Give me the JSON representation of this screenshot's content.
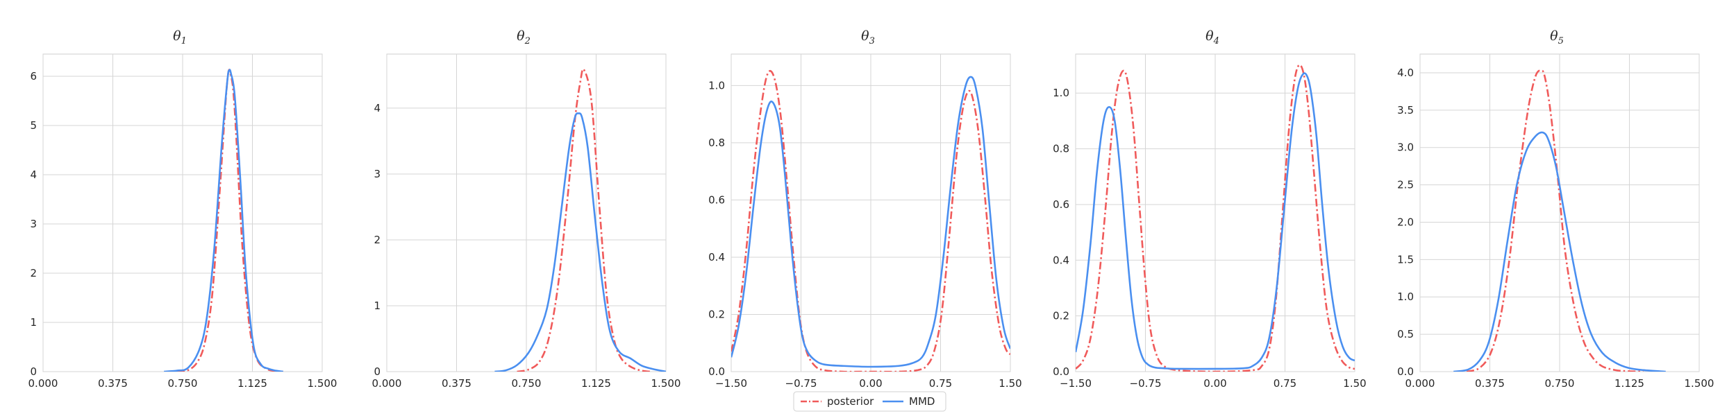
{
  "colors": {
    "posterior": "#f05a5a",
    "mmd": "#4a8ff0",
    "grid": "#d5d5d5",
    "frame": "#cfcfcf"
  },
  "legend": {
    "placement": "bottom-center",
    "entries": [
      {
        "name": "posterior",
        "style": "dash-dot",
        "color": "#f05a5a"
      },
      {
        "name": "MMD",
        "style": "solid",
        "color": "#4a8ff0"
      }
    ]
  },
  "chart_data": [
    {
      "type": "line",
      "title": "θ",
      "title_sub": "1",
      "xlim": [
        0.0,
        1.5
      ],
      "ylim": [
        0,
        6.45
      ],
      "xticks": [
        "0.000",
        "0.375",
        "0.750",
        "1.125",
        "1.500"
      ],
      "xtick_values": [
        0.0,
        0.375,
        0.75,
        1.125,
        1.5
      ],
      "yticks": [
        "0",
        "1",
        "2",
        "3",
        "4",
        "5",
        "6"
      ],
      "ytick_values": [
        0,
        1,
        2,
        3,
        4,
        5,
        6
      ],
      "grid": true,
      "series": [
        {
          "name": "posterior",
          "x": [
            0.72,
            0.78,
            0.83,
            0.87,
            0.91,
            0.95,
            0.99,
            1.01,
            1.03,
            1.07,
            1.11,
            1.15,
            1.2,
            1.25,
            1.29
          ],
          "y": [
            0,
            0.03,
            0.2,
            0.6,
            1.6,
            3.7,
            5.9,
            6.0,
            5.3,
            2.6,
            0.9,
            0.25,
            0.06,
            0.01,
            0
          ]
        },
        {
          "name": "MMD",
          "x": [
            0.65,
            0.72,
            0.78,
            0.84,
            0.88,
            0.92,
            0.96,
            0.99,
            1.0,
            1.01,
            1.03,
            1.06,
            1.09,
            1.13,
            1.17,
            1.21,
            1.25,
            1.29
          ],
          "y": [
            0,
            0.02,
            0.08,
            0.45,
            1.1,
            2.5,
            4.6,
            5.9,
            6.12,
            6.05,
            5.6,
            3.9,
            2.0,
            0.55,
            0.15,
            0.06,
            0.02,
            0
          ]
        }
      ]
    },
    {
      "type": "line",
      "title": "θ",
      "title_sub": "2",
      "xlim": [
        0.0,
        1.5
      ],
      "ylim": [
        0,
        4.82
      ],
      "xticks": [
        "0.000",
        "0.375",
        "0.750",
        "1.125",
        "1.500"
      ],
      "xtick_values": [
        0.0,
        0.375,
        0.75,
        1.125,
        1.5
      ],
      "yticks": [
        "0",
        "1",
        "2",
        "3",
        "4"
      ],
      "ytick_values": [
        0,
        1,
        2,
        3,
        4
      ],
      "grid": true,
      "series": [
        {
          "name": "posterior",
          "x": [
            0.7,
            0.76,
            0.82,
            0.87,
            0.92,
            0.97,
            1.01,
            1.04,
            1.06,
            1.1,
            1.14,
            1.18,
            1.22,
            1.26,
            1.32,
            1.38,
            1.42
          ],
          "y": [
            0,
            0.03,
            0.15,
            0.5,
            1.3,
            2.6,
            3.8,
            4.4,
            4.58,
            4.1,
            2.6,
            1.2,
            0.5,
            0.2,
            0.06,
            0.01,
            0
          ]
        },
        {
          "name": "MMD",
          "x": [
            0.58,
            0.64,
            0.7,
            0.76,
            0.81,
            0.86,
            0.9,
            0.94,
            0.98,
            1.01,
            1.03,
            1.05,
            1.08,
            1.12,
            1.16,
            1.2,
            1.25,
            1.31,
            1.37,
            1.43,
            1.5
          ],
          "y": [
            0,
            0.02,
            0.1,
            0.28,
            0.55,
            0.95,
            1.6,
            2.5,
            3.4,
            3.85,
            3.92,
            3.85,
            3.4,
            2.3,
            1.3,
            0.6,
            0.3,
            0.2,
            0.09,
            0.04,
            0
          ]
        }
      ]
    },
    {
      "type": "line",
      "title": "θ",
      "title_sub": "3",
      "xlim": [
        -1.5,
        1.5
      ],
      "ylim": [
        0,
        1.11
      ],
      "xticks": [
        "−1.50",
        "−0.75",
        "0.00",
        "0.75",
        "1.50"
      ],
      "xtick_values": [
        -1.5,
        -0.75,
        0.0,
        0.75,
        1.5
      ],
      "yticks": [
        "0.0",
        "0.2",
        "0.4",
        "0.6",
        "0.8",
        "1.0"
      ],
      "ytick_values": [
        0.0,
        0.2,
        0.4,
        0.6,
        0.8,
        1.0
      ],
      "grid": true,
      "series": [
        {
          "name": "posterior",
          "x": [
            -1.5,
            -1.42,
            -1.34,
            -1.26,
            -1.18,
            -1.11,
            -1.04,
            -0.97,
            -0.9,
            -0.83,
            -0.76,
            -0.69,
            -0.6,
            -0.5,
            -0.3,
            0.0,
            0.3,
            0.5,
            0.6,
            0.68,
            0.76,
            0.84,
            0.92,
            0.99,
            1.05,
            1.1,
            1.16,
            1.23,
            1.3,
            1.38,
            1.45,
            1.5
          ],
          "y": [
            0.07,
            0.2,
            0.42,
            0.7,
            0.92,
            1.04,
            1.03,
            0.9,
            0.66,
            0.4,
            0.18,
            0.07,
            0.02,
            0.005,
            0,
            0,
            0,
            0.005,
            0.02,
            0.07,
            0.2,
            0.46,
            0.75,
            0.92,
            0.98,
            0.95,
            0.83,
            0.6,
            0.35,
            0.16,
            0.08,
            0.06
          ]
        },
        {
          "name": "MMD",
          "x": [
            -1.5,
            -1.42,
            -1.34,
            -1.26,
            -1.18,
            -1.11,
            -1.05,
            -0.98,
            -0.92,
            -0.86,
            -0.8,
            -0.74,
            -0.68,
            -0.6,
            -0.5,
            -0.3,
            0.0,
            0.3,
            0.45,
            0.55,
            0.62,
            0.7,
            0.78,
            0.86,
            0.94,
            1.02,
            1.08,
            1.13,
            1.2,
            1.27,
            1.35,
            1.43,
            1.5
          ],
          "y": [
            0.05,
            0.16,
            0.34,
            0.58,
            0.8,
            0.92,
            0.94,
            0.86,
            0.68,
            0.46,
            0.27,
            0.13,
            0.07,
            0.04,
            0.025,
            0.02,
            0.017,
            0.02,
            0.03,
            0.05,
            0.1,
            0.2,
            0.4,
            0.65,
            0.87,
            1.0,
            1.03,
            0.99,
            0.85,
            0.6,
            0.32,
            0.15,
            0.08
          ]
        }
      ]
    },
    {
      "type": "line",
      "title": "θ",
      "title_sub": "4",
      "xlim": [
        -1.5,
        1.5
      ],
      "ylim": [
        0,
        1.14
      ],
      "xticks": [
        "−1.50",
        "−0.75",
        "0.00",
        "0.75",
        "1.50"
      ],
      "xtick_values": [
        -1.5,
        -0.75,
        0.0,
        0.75,
        1.5
      ],
      "yticks": [
        "0.0",
        "0.2",
        "0.4",
        "0.6",
        "0.8",
        "1.0"
      ],
      "ytick_values": [
        0.0,
        0.2,
        0.4,
        0.6,
        0.8,
        1.0
      ],
      "grid": true,
      "series": [
        {
          "name": "posterior",
          "x": [
            -1.5,
            -1.42,
            -1.34,
            -1.26,
            -1.18,
            -1.11,
            -1.05,
            -0.99,
            -0.94,
            -0.88,
            -0.82,
            -0.76,
            -0.7,
            -0.63,
            -0.55,
            -0.4,
            0.0,
            0.4,
            0.5,
            0.58,
            0.65,
            0.72,
            0.79,
            0.85,
            0.9,
            0.95,
            1.0,
            1.06,
            1.13,
            1.2,
            1.28,
            1.36,
            1.44,
            1.5
          ],
          "y": [
            0.01,
            0.04,
            0.12,
            0.3,
            0.58,
            0.86,
            1.02,
            1.08,
            1.04,
            0.88,
            0.62,
            0.36,
            0.16,
            0.06,
            0.02,
            0.005,
            0,
            0.005,
            0.02,
            0.08,
            0.25,
            0.55,
            0.86,
            1.04,
            1.1,
            1.07,
            0.95,
            0.72,
            0.44,
            0.22,
            0.1,
            0.04,
            0.015,
            0.01
          ]
        },
        {
          "name": "MMD",
          "x": [
            -1.5,
            -1.42,
            -1.34,
            -1.27,
            -1.2,
            -1.14,
            -1.08,
            -1.02,
            -0.96,
            -0.9,
            -0.84,
            -0.78,
            -0.72,
            -0.65,
            -0.55,
            -0.4,
            0.0,
            0.3,
            0.4,
            0.5,
            0.58,
            0.66,
            0.74,
            0.82,
            0.89,
            0.95,
            1.0,
            1.04,
            1.09,
            1.15,
            1.22,
            1.3,
            1.37,
            1.44,
            1.5
          ],
          "y": [
            0.07,
            0.22,
            0.46,
            0.72,
            0.9,
            0.95,
            0.9,
            0.72,
            0.48,
            0.26,
            0.12,
            0.05,
            0.025,
            0.015,
            0.012,
            0.01,
            0.01,
            0.012,
            0.02,
            0.05,
            0.12,
            0.3,
            0.58,
            0.86,
            1.02,
            1.07,
            1.05,
            0.98,
            0.84,
            0.6,
            0.36,
            0.18,
            0.09,
            0.05,
            0.04
          ]
        }
      ]
    },
    {
      "type": "line",
      "title": "θ",
      "title_sub": "5",
      "xlim": [
        0.0,
        1.5
      ],
      "ylim": [
        0,
        4.25
      ],
      "xticks": [
        "0.000",
        "0.375",
        "0.750",
        "1.125",
        "1.500"
      ],
      "xtick_values": [
        0.0,
        0.375,
        0.75,
        1.125,
        1.5
      ],
      "yticks": [
        "0.0",
        "0.5",
        "1.0",
        "1.5",
        "2.0",
        "2.5",
        "3.0",
        "3.5",
        "4.0"
      ],
      "ytick_values": [
        0.0,
        0.5,
        1.0,
        1.5,
        2.0,
        2.5,
        3.0,
        3.5,
        4.0
      ],
      "grid": true,
      "series": [
        {
          "name": "posterior",
          "x": [
            0.25,
            0.32,
            0.38,
            0.43,
            0.48,
            0.53,
            0.58,
            0.62,
            0.65,
            0.67,
            0.7,
            0.74,
            0.78,
            0.83,
            0.88,
            0.93,
            0.98,
            1.05,
            1.12,
            1.2
          ],
          "y": [
            0,
            0.05,
            0.25,
            0.7,
            1.5,
            2.6,
            3.5,
            3.95,
            4.03,
            3.95,
            3.5,
            2.6,
            1.6,
            0.85,
            0.4,
            0.18,
            0.07,
            0.02,
            0.005,
            0
          ]
        },
        {
          "name": "MMD",
          "x": [
            0.18,
            0.26,
            0.32,
            0.37,
            0.42,
            0.47,
            0.52,
            0.57,
            0.62,
            0.66,
            0.69,
            0.73,
            0.77,
            0.82,
            0.87,
            0.92,
            0.98,
            1.05,
            1.12,
            1.2,
            1.32
          ],
          "y": [
            0,
            0.03,
            0.15,
            0.4,
            0.95,
            1.75,
            2.5,
            2.95,
            3.15,
            3.2,
            3.1,
            2.75,
            2.2,
            1.5,
            0.9,
            0.5,
            0.25,
            0.12,
            0.05,
            0.02,
            0
          ]
        }
      ]
    }
  ]
}
